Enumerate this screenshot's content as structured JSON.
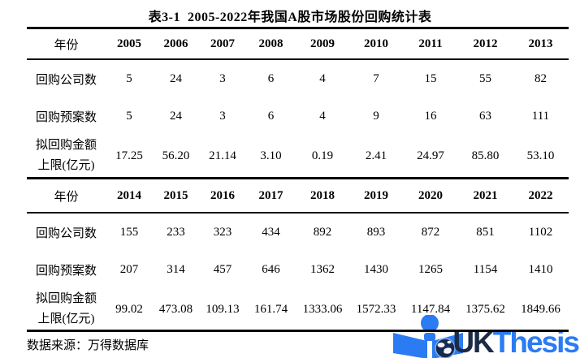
{
  "page": {
    "title": "表3-1  2005-2022年我国A股市场股份回购统计表",
    "source_note": "数据来源：万得数据库"
  },
  "table": {
    "row_labels": {
      "companies": "回购公司数",
      "proposals": "回购预案数",
      "amount_line1": "拟回购金额",
      "amount_line2": "上限(亿元)"
    },
    "blocks": [
      {
        "year_header_label": "年份",
        "years": [
          "2005",
          "2006",
          "2007",
          "2008",
          "2009",
          "2010",
          "2011",
          "2012",
          "2013"
        ],
        "companies": [
          "5",
          "24",
          "3",
          "6",
          "4",
          "7",
          "15",
          "55",
          "82"
        ],
        "proposals": [
          "5",
          "24",
          "3",
          "6",
          "4",
          "9",
          "16",
          "63",
          "111"
        ],
        "amounts": [
          "17.25",
          "56.20",
          "21.14",
          "3.10",
          "0.19",
          "2.41",
          "24.97",
          "85.80",
          "53.10"
        ]
      },
      {
        "year_header_label": "年份",
        "years": [
          "2014",
          "2015",
          "2016",
          "2017",
          "2018",
          "2019",
          "2020",
          "2021",
          "2022"
        ],
        "companies": [
          "155",
          "233",
          "323",
          "434",
          "892",
          "893",
          "872",
          "851",
          "1102"
        ],
        "proposals": [
          "207",
          "314",
          "457",
          "646",
          "1362",
          "1430",
          "1265",
          "1154",
          "1410"
        ],
        "amounts": [
          "99.02",
          "473.08",
          "109.13",
          "161.74",
          "1333.06",
          "1572.33",
          "1147.84",
          "1375.62",
          "1849.66"
        ]
      }
    ]
  },
  "logo": {
    "text_primary": "UK",
    "text_secondary": "Thesis",
    "colors": {
      "icon_blue": "#2b7bf3",
      "uk_navy": "#1b2b47",
      "thesis_blue": "#2b7bf3",
      "globe_navy": "#172a4d"
    }
  }
}
